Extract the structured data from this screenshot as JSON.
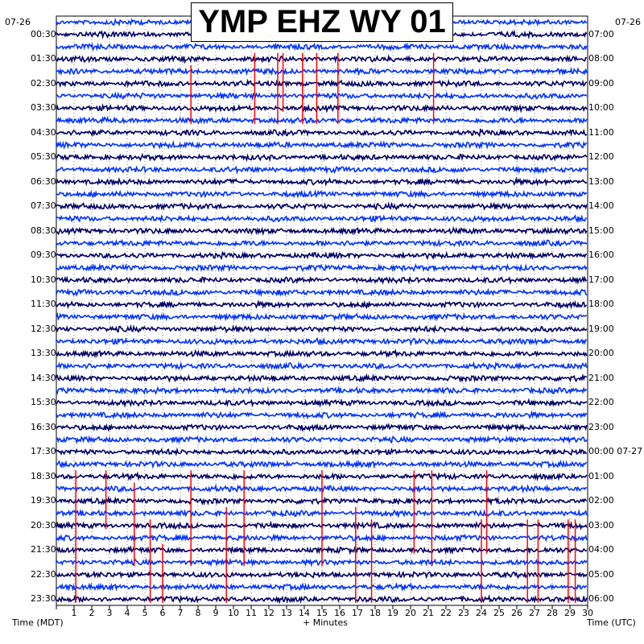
{
  "title": "YMP EHZ WY 01",
  "date_left": "07-26",
  "date_right": "07-26",
  "left_axis_label": "Time (MDT)",
  "right_axis_label": "Time (UTC)",
  "x_axis_label": "+ Minutes",
  "colors": {
    "trace_dark": "#000066",
    "trace_bright": "#0033ff",
    "event": "#ff0000",
    "grid": "#000000"
  },
  "chart_data": {
    "type": "line",
    "subtype": "helicorder",
    "x_range_minutes": [
      0,
      30
    ],
    "x_ticks": [
      "1",
      "2",
      "3",
      "4",
      "5",
      "6",
      "7",
      "8",
      "9",
      "10",
      "11",
      "12",
      "13",
      "14",
      "15",
      "16",
      "17",
      "18",
      "19",
      "20",
      "21",
      "22",
      "23",
      "24",
      "25",
      "26",
      "27",
      "28",
      "29",
      "30"
    ],
    "left_ticks": [
      "00:30",
      "01:30",
      "02:30",
      "03:30",
      "04:30",
      "05:30",
      "06:30",
      "07:30",
      "08:30",
      "09:30",
      "10:30",
      "11:30",
      "12:30",
      "13:30",
      "14:30",
      "15:30",
      "16:30",
      "17:30",
      "18:30",
      "19:30",
      "20:30",
      "21:30",
      "22:30",
      "23:30"
    ],
    "right_ticks": [
      "07:00",
      "08:00",
      "09:00",
      "10:00",
      "11:00",
      "12:00",
      "13:00",
      "14:00",
      "15:00",
      "16:00",
      "17:00",
      "18:00",
      "19:00",
      "20:00",
      "21:00",
      "22:00",
      "23:00",
      "00:00 07-27",
      "01:00",
      "02:00",
      "03:00",
      "04:00",
      "05:00",
      "06:00"
    ],
    "rows": 48,
    "row_minutes": 30,
    "events": [
      {
        "minute": 7.6,
        "row_start": 4,
        "row_end": 8
      },
      {
        "minute": 11.2,
        "row_start": 3,
        "row_end": 8
      },
      {
        "minute": 12.5,
        "row_start": 3,
        "row_end": 8
      },
      {
        "minute": 12.8,
        "row_start": 3,
        "row_end": 7
      },
      {
        "minute": 13.9,
        "row_start": 3,
        "row_end": 8
      },
      {
        "minute": 14.7,
        "row_start": 3,
        "row_end": 8
      },
      {
        "minute": 15.9,
        "row_start": 3,
        "row_end": 8
      },
      {
        "minute": 21.3,
        "row_start": 3,
        "row_end": 8
      },
      {
        "minute": 1.1,
        "row_start": 37,
        "row_end": 47
      },
      {
        "minute": 2.8,
        "row_start": 37,
        "row_end": 41
      },
      {
        "minute": 4.4,
        "row_start": 38,
        "row_end": 44
      },
      {
        "minute": 5.3,
        "row_start": 41,
        "row_end": 47
      },
      {
        "minute": 6.0,
        "row_start": 43,
        "row_end": 47
      },
      {
        "minute": 7.6,
        "row_start": 37,
        "row_end": 44
      },
      {
        "minute": 9.6,
        "row_start": 40,
        "row_end": 47
      },
      {
        "minute": 10.6,
        "row_start": 37,
        "row_end": 44
      },
      {
        "minute": 15.0,
        "row_start": 37,
        "row_end": 44
      },
      {
        "minute": 16.9,
        "row_start": 40,
        "row_end": 47
      },
      {
        "minute": 17.8,
        "row_start": 41,
        "row_end": 47
      },
      {
        "minute": 20.2,
        "row_start": 37,
        "row_end": 43
      },
      {
        "minute": 21.2,
        "row_start": 37,
        "row_end": 44
      },
      {
        "minute": 24.0,
        "row_start": 41,
        "row_end": 47
      },
      {
        "minute": 24.3,
        "row_start": 37,
        "row_end": 43
      },
      {
        "minute": 26.6,
        "row_start": 41,
        "row_end": 47
      },
      {
        "minute": 27.2,
        "row_start": 41,
        "row_end": 47
      },
      {
        "minute": 28.9,
        "row_start": 41,
        "row_end": 47
      },
      {
        "minute": 29.3,
        "row_start": 41,
        "row_end": 47
      }
    ]
  }
}
